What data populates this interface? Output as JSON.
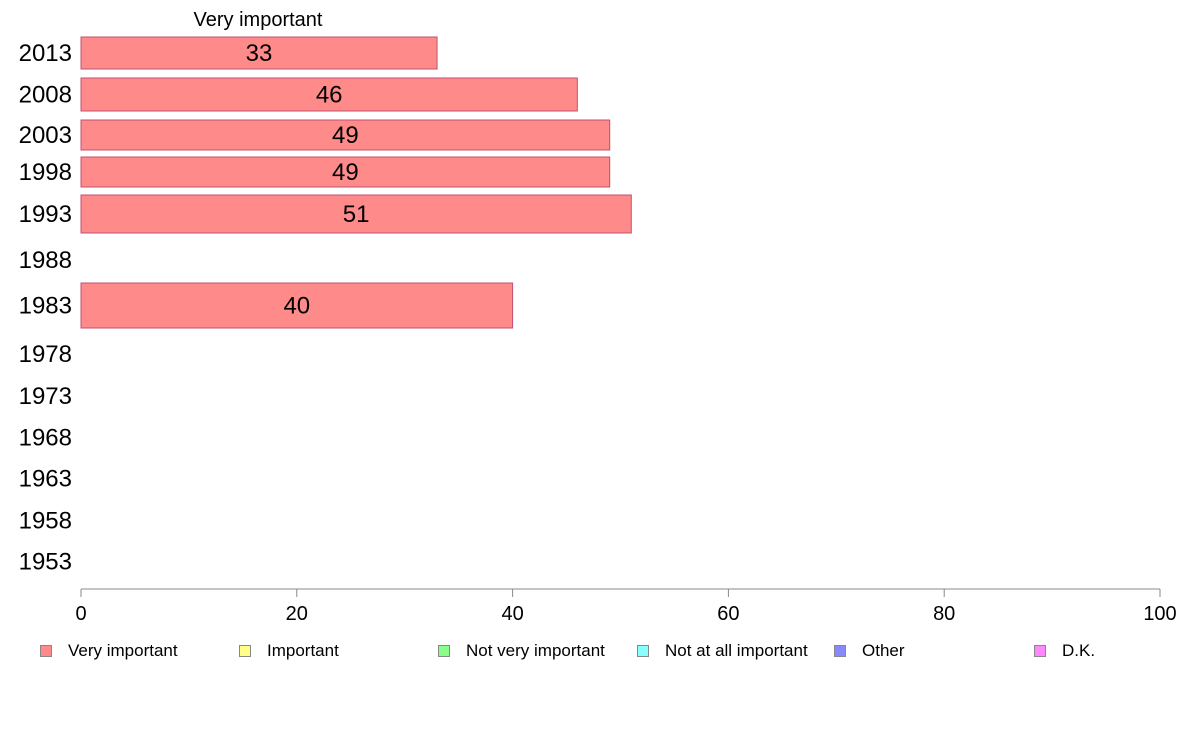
{
  "chart_data": {
    "type": "bar",
    "orientation": "horizontal",
    "series_label": "Very important",
    "categories": [
      "2013",
      "2008",
      "2003",
      "1998",
      "1993",
      "1988",
      "1983",
      "1978",
      "1973",
      "1968",
      "1963",
      "1958",
      "1953"
    ],
    "series": [
      {
        "name": "Very important",
        "values": [
          33,
          46,
          49,
          49,
          51,
          null,
          40,
          null,
          null,
          null,
          null,
          null,
          null
        ]
      }
    ],
    "xlim": [
      0,
      100
    ],
    "xticks": [
      0,
      20,
      40,
      60,
      80,
      100
    ],
    "grid": false,
    "bar_color": "#ff8a8a",
    "bar_edge_color": "#c05070",
    "legend_position": "bottom",
    "legend": [
      {
        "label": "Very important",
        "color": "#ff8a8a"
      },
      {
        "label": "Important",
        "color": "#ffff88"
      },
      {
        "label": "Not very important",
        "color": "#88ff88"
      },
      {
        "label": "Not at all important",
        "color": "#88ffff"
      },
      {
        "label": "Other",
        "color": "#8888ff"
      },
      {
        "label": "D.K.",
        "color": "#ff88ff"
      }
    ]
  }
}
